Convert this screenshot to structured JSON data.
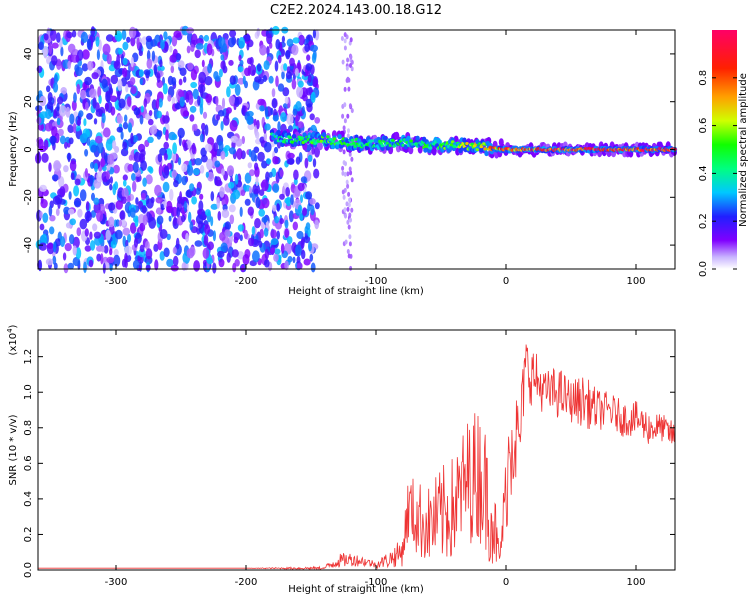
{
  "title": "C2E2.2024.143.00.18.G12",
  "chart_data": [
    {
      "type": "heatmap",
      "xlabel": "Height of straight line (km)",
      "ylabel": "Frequency (Hz)",
      "xlim": [
        -360,
        130
      ],
      "ylim": [
        -50,
        50
      ],
      "xticks": [
        -300,
        -200,
        -100,
        0,
        100
      ],
      "yticks": [
        -40,
        -20,
        0,
        20,
        40
      ],
      "colorbar": {
        "label": "Normalized spectral amplitude",
        "range": [
          0.0,
          1.0
        ],
        "ticks": [
          "0.0",
          "0.2",
          "0.4",
          "0.6",
          "0.8"
        ],
        "tick_values": [
          0.0,
          0.2,
          0.4,
          0.6,
          0.8
        ]
      },
      "features": {
        "noise_region_x": [
          -360,
          -145
        ],
        "noise_level": 0.18,
        "spur_x": -122,
        "signal_track": [
          {
            "x": -180,
            "f": 5,
            "amp": 0.42
          },
          {
            "x": -160,
            "f": 4,
            "amp": 0.5
          },
          {
            "x": -140,
            "f": 4,
            "amp": 0.55
          },
          {
            "x": -120,
            "f": 3,
            "amp": 0.5
          },
          {
            "x": -100,
            "f": 2,
            "amp": 0.45
          },
          {
            "x": -80,
            "f": 3,
            "amp": 0.5
          },
          {
            "x": -60,
            "f": 2,
            "amp": 0.5
          },
          {
            "x": -40,
            "f": 2,
            "amp": 0.55
          },
          {
            "x": -20,
            "f": 1,
            "amp": 0.7
          },
          {
            "x": 0,
            "f": 0,
            "amp": 0.85
          },
          {
            "x": 50,
            "f": 0,
            "amp": 0.95
          },
          {
            "x": 100,
            "f": 0,
            "amp": 0.95
          },
          {
            "x": 130,
            "f": 0,
            "amp": 0.9
          }
        ]
      }
    },
    {
      "type": "line",
      "xlabel": "Height of straight line (km)",
      "ylabel": "SNR (10 * v/v)",
      "scale_label": "(x10",
      "scale_exp": "4",
      "scale_close": ")",
      "xlim": [
        -360,
        130
      ],
      "ylim": [
        0,
        1.35
      ],
      "xticks": [
        -300,
        -200,
        -100,
        0,
        100
      ],
      "yticks": [
        "0.0",
        "0.2",
        "0.4",
        "0.6",
        "0.8",
        "1.0",
        "1.2"
      ],
      "ytick_values": [
        0.0,
        0.2,
        0.4,
        0.6,
        0.8,
        1.0,
        1.2
      ],
      "color": "#ee3333",
      "series": [
        {
          "x": [
            -360,
            -300,
            -200,
            -140,
            -130,
            -120,
            -110,
            -100,
            -90,
            -80,
            -75,
            -70,
            -60,
            -50,
            -40,
            -30,
            -20,
            -10,
            -5,
            5,
            10,
            15,
            20,
            30,
            40,
            50,
            60,
            70,
            80,
            90,
            100,
            110,
            120,
            130
          ],
          "mean": [
            0.01,
            0.01,
            0.01,
            0.01,
            0.05,
            0.06,
            0.05,
            0.03,
            0.06,
            0.1,
            0.35,
            0.3,
            0.25,
            0.3,
            0.35,
            0.5,
            0.55,
            0.3,
            0.05,
            0.85,
            0.7,
            1.15,
            1.1,
            1.0,
            1.0,
            0.95,
            0.95,
            0.9,
            0.9,
            0.85,
            0.85,
            0.8,
            0.8,
            0.75
          ],
          "amp": [
            0.0,
            0.0,
            0.0,
            0.01,
            0.04,
            0.04,
            0.03,
            0.02,
            0.05,
            0.08,
            0.2,
            0.22,
            0.22,
            0.28,
            0.3,
            0.35,
            0.4,
            0.3,
            0.05,
            0.45,
            0.2,
            0.18,
            0.18,
            0.12,
            0.15,
            0.12,
            0.15,
            0.12,
            0.1,
            0.1,
            0.1,
            0.1,
            0.08,
            0.08
          ]
        }
      ]
    }
  ]
}
